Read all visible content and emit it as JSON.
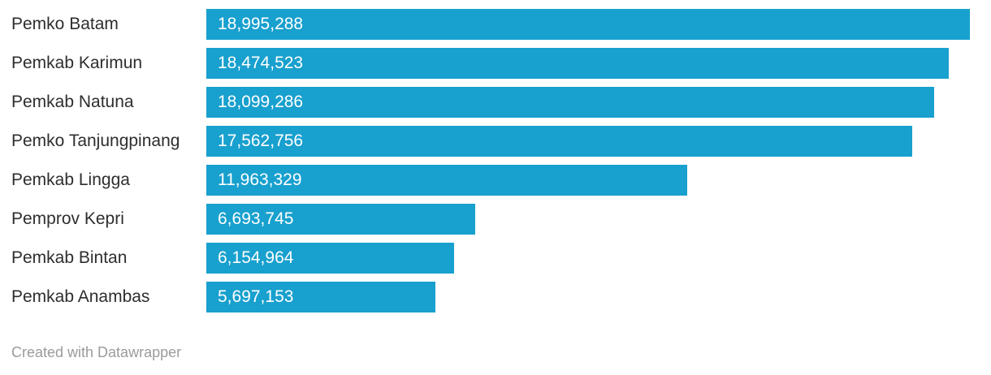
{
  "chart_data": {
    "type": "bar",
    "orientation": "horizontal",
    "title": "",
    "xlabel": "",
    "ylabel": "",
    "grid": false,
    "legend": false,
    "categories": [
      "Pemko Batam",
      "Pemkab Karimun",
      "Pemkab Natuna",
      "Pemko Tanjungpinang",
      "Pemkab Lingga",
      "Pemprov Kepri",
      "Pemkab Bintan",
      "Pemkab Anambas"
    ],
    "values": [
      18995288,
      18474523,
      18099286,
      17562756,
      11963329,
      6693745,
      6154964,
      5697153
    ],
    "value_labels": [
      "18,995,288",
      "18,474,523",
      "18,099,286",
      "17,562,756",
      "11,963,329",
      "6,693,745",
      "6,154,964",
      "5,697,153"
    ],
    "xlim": [
      0,
      18995288
    ],
    "colors": {
      "bar": "#18a0ce",
      "category_label": "#2e2e2e",
      "value_label": "#ffffff",
      "credit": "#9b9b9b",
      "background": "#ffffff"
    }
  },
  "footer": {
    "credit": "Created with Datawrapper"
  }
}
